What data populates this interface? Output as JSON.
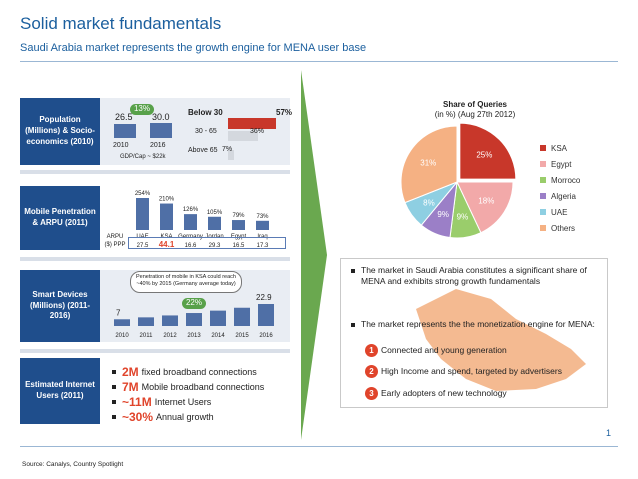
{
  "header": {
    "title": "Solid market fundamentals",
    "subtitle": "Saudi Arabia market represents the growth engine for MENA user base"
  },
  "rows": {
    "population": {
      "label": "Population (Millions) & Socio-economics (2010)",
      "growth_badge": "13%",
      "values": [
        "26.5",
        "30.0"
      ],
      "years": [
        "2010",
        "2016"
      ],
      "gdp_note": "GDP/Cap ~ $22k",
      "age_title": "Below 30",
      "age_groups": [
        {
          "label": "Below 30",
          "pct": "57%",
          "value": 57
        },
        {
          "label": "30 - 65",
          "pct": "36%",
          "value": 36
        },
        {
          "label": "Above 65",
          "pct": "7%",
          "value": 7
        }
      ]
    },
    "mobile": {
      "label": "Mobile Penetration & ARPU (2011)",
      "arpu_label": "ARPU ($) PPP",
      "countries": [
        "UAE",
        "KSA",
        "Germany",
        "Jordan",
        "Egypt",
        "Iraq"
      ],
      "penetration_labels": [
        "254%",
        "210%",
        "126%",
        "105%",
        "79%",
        "73%"
      ],
      "penetration": [
        254,
        210,
        126,
        105,
        79,
        73
      ],
      "arpu": [
        "27.5",
        "44.1",
        "16.6",
        "29.3",
        "16.5",
        "17.3"
      ]
    },
    "smart": {
      "label": "Smart Devices (Millions) (2011-2016)",
      "callout": "Penetration of mobile in KSA could reach ~40% by 2015 (Germany average today)",
      "growth_badge": "22%",
      "start_value": "7",
      "end_value": "22.9",
      "years": [
        "2010",
        "2011",
        "2012",
        "2013",
        "2014",
        "2015",
        "2016"
      ],
      "values": [
        7,
        9,
        11,
        13.5,
        16,
        19,
        22.9
      ]
    },
    "internet": {
      "label": "Estimated Internet Users (2011)",
      "items": [
        {
          "big": "2M",
          "text": "fixed broadband connections"
        },
        {
          "big": "7M",
          "text": "Mobile broadband connections"
        },
        {
          "big": "~11M",
          "text": "Internet Users"
        },
        {
          "big": "~30%",
          "text": "Annual growth"
        }
      ]
    }
  },
  "pie": {
    "title": "Share of Queries",
    "subtitle": "(in %) (Aug 27th 2012)",
    "slices": [
      {
        "name": "KSA",
        "value": 25,
        "label": "25%",
        "color": "#c8372a"
      },
      {
        "name": "Egypt",
        "value": 18,
        "label": "18%",
        "color": "#f2a9a9"
      },
      {
        "name": "Morroco",
        "value": 9,
        "label": "9%",
        "color": "#9acd6b"
      },
      {
        "name": "Algeria",
        "value": 9,
        "label": "9%",
        "color": "#9b7fc7"
      },
      {
        "name": "UAE",
        "value": 8,
        "label": "8%",
        "color": "#8ecfe2"
      },
      {
        "name": "Others",
        "value": 31,
        "label": "31%",
        "color": "#f5b183"
      }
    ]
  },
  "bullets": {
    "b1": "The market in Saudi Arabia constitutes a significant share of MENA and exhibits strong growth fundamentals",
    "b2": "The market represents the the monetization engine for MENA:",
    "numbered": [
      {
        "n": "1",
        "text": "Connected and young generation"
      },
      {
        "n": "2",
        "text": "High Income and spend, targeted by advertisers"
      },
      {
        "n": "3",
        "text": "Early adopters of new technology"
      }
    ]
  },
  "footer": {
    "source": "Source: Canalys, Country Spotlight",
    "page": "1"
  }
}
